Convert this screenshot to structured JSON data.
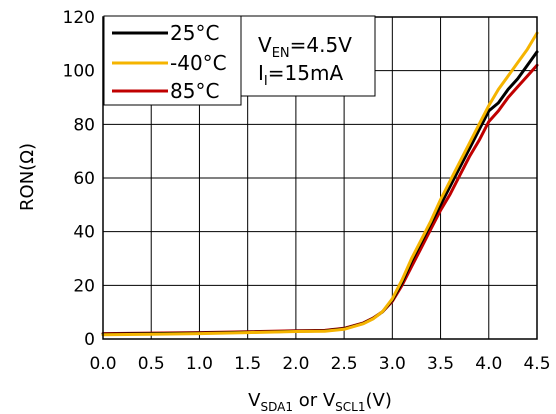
{
  "chart_data": {
    "type": "line",
    "xlabel": {
      "base1": "V",
      "sub1": "SDA1",
      "mid": " or V",
      "sub2": "SCL1",
      "tail": "(V)"
    },
    "ylabel": "RON(Ω)",
    "xlim": [
      0,
      4.5
    ],
    "ylim": [
      0,
      120
    ],
    "xticks": [
      0,
      0.5,
      1.0,
      1.5,
      2.0,
      2.5,
      3.0,
      3.5,
      4.0,
      4.5
    ],
    "xtick_labels": [
      "0.0",
      "0.5",
      "1.0",
      "1.5",
      "2.0",
      "2.5",
      "3.0",
      "3.5",
      "4.0",
      "4.5"
    ],
    "yticks": [
      0,
      20,
      40,
      60,
      80,
      100,
      120
    ],
    "ytick_labels": [
      "0",
      "20",
      "40",
      "60",
      "80",
      "100",
      "120"
    ],
    "grid": true,
    "legend_position": "top-left",
    "series": [
      {
        "name": "25°C",
        "color": "#000000",
        "x": [
          0,
          0.5,
          1.0,
          1.5,
          2.0,
          2.3,
          2.5,
          2.7,
          2.8,
          2.9,
          3.0,
          3.1,
          3.2,
          3.3,
          3.4,
          3.5,
          3.6,
          3.7,
          3.8,
          3.9,
          4.0,
          4.1,
          4.2,
          4.3,
          4.4,
          4.5
        ],
        "y": [
          1.8,
          2.0,
          2.2,
          2.5,
          2.9,
          3.0,
          3.8,
          5.8,
          7.6,
          10.2,
          14.5,
          21,
          29,
          36,
          43,
          50,
          57,
          64,
          71,
          78,
          85,
          88,
          93,
          97,
          102,
          107
        ]
      },
      {
        "name": "-40°C",
        "color": "#F5B400",
        "x": [
          0,
          0.5,
          1.0,
          1.5,
          2.0,
          2.3,
          2.5,
          2.7,
          2.8,
          2.9,
          3.0,
          3.1,
          3.2,
          3.3,
          3.4,
          3.5,
          3.6,
          3.7,
          3.8,
          3.9,
          4.0,
          4.1,
          4.2,
          4.3,
          4.4,
          4.5
        ],
        "y": [
          1.6,
          1.8,
          2.0,
          2.4,
          2.8,
          2.9,
          3.6,
          5.7,
          7.5,
          10.3,
          15,
          22,
          30,
          37,
          44,
          52,
          59,
          66,
          73,
          80,
          87,
          93,
          98,
          103,
          108,
          114
        ]
      },
      {
        "name": "85°C",
        "color": "#C00000",
        "x": [
          0,
          0.5,
          1.0,
          1.5,
          2.0,
          2.3,
          2.5,
          2.7,
          2.8,
          2.9,
          3.0,
          3.1,
          3.2,
          3.3,
          3.4,
          3.5,
          3.6,
          3.7,
          3.8,
          3.9,
          4.0,
          4.1,
          4.2,
          4.3,
          4.4,
          4.5
        ],
        "y": [
          2.0,
          2.2,
          2.4,
          2.7,
          3.1,
          3.2,
          4.0,
          6.0,
          7.8,
          10.2,
          14,
          20,
          27,
          34,
          41,
          48,
          54,
          61,
          68,
          74,
          81,
          85,
          90,
          94,
          98,
          102
        ]
      }
    ],
    "annotation": {
      "line1_base": "V",
      "line1_sub": "EN",
      "line1_tail": "=4.5V",
      "line2_base": "I",
      "line2_sub": "I",
      "line2_tail": "=15mA"
    }
  }
}
